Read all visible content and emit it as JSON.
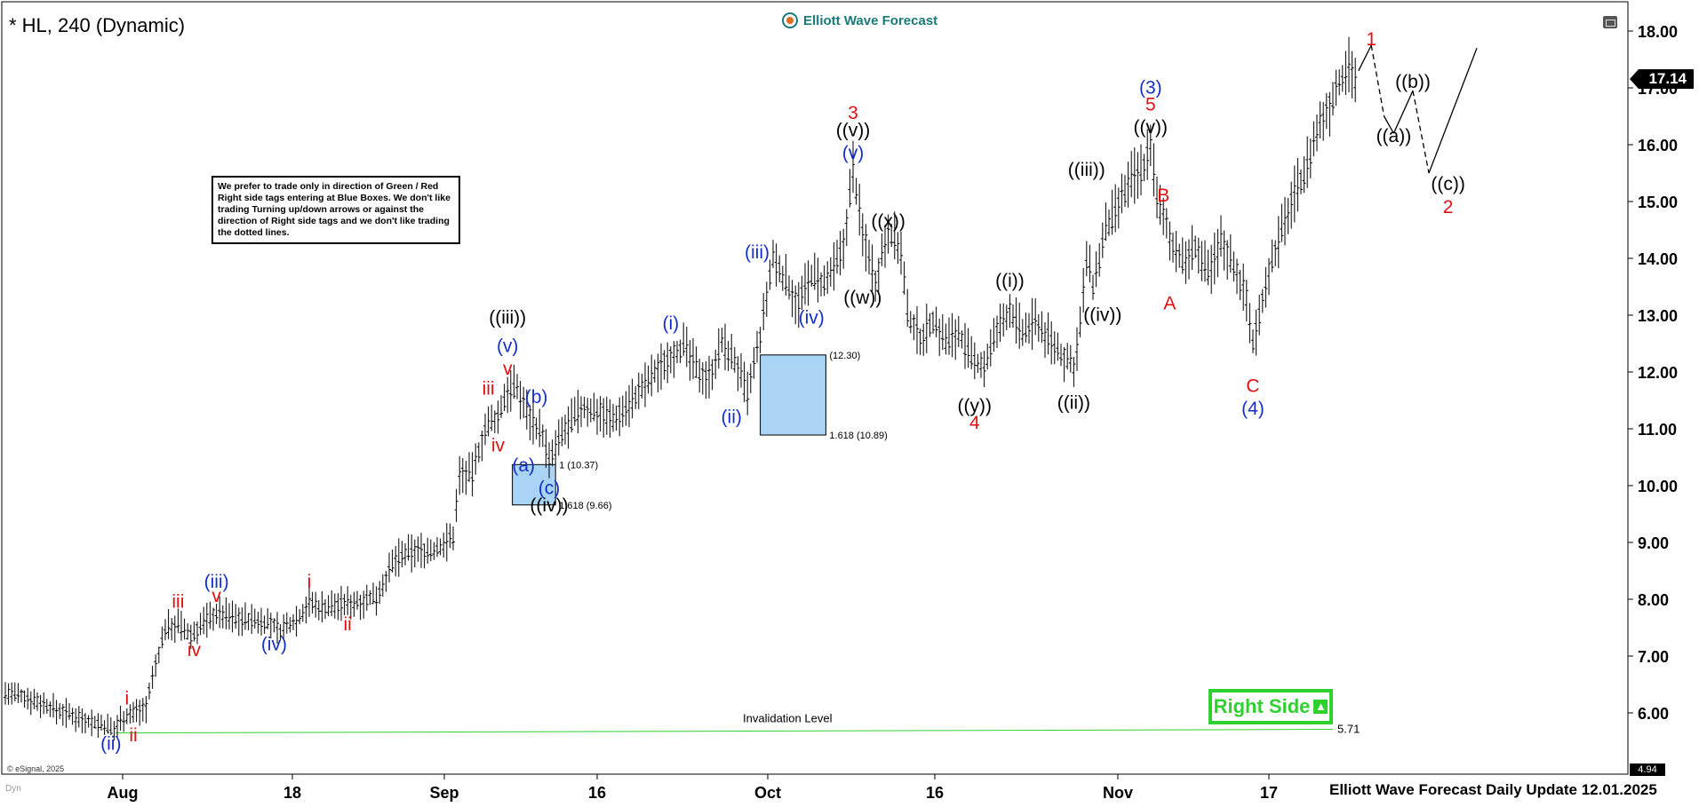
{
  "header": {
    "symbol_title": "* HL, 240 (Dynamic)",
    "brand": "Elliott Wave Forecast"
  },
  "notice": "We prefer to trade only in direction of Green / Red Right side tags entering at Blue Boxes. We don't like trading Turning up/down arrows or against the direction of Right side tags and we don't like trading the dotted lines.",
  "right_side_label": "Right Side",
  "footer": "Elliott Wave Forecast Daily Update 12.01.2025",
  "copyright": "© eSignal, 2025",
  "dyn_label": "Dyn",
  "last_price": "17.14",
  "min_price_tag": "4.94",
  "colors": {
    "red": "#e01010",
    "blue": "#1530c8",
    "black": "#000000",
    "green": "#2fd12f",
    "box": "#a9d4f5"
  },
  "chart_data": {
    "type": "ohlc",
    "title": "* HL, 240 (Dynamic)",
    "ylim": [
      5,
      18
    ],
    "y_ticks": [
      "18.00",
      "17.00",
      "16.00",
      "15.00",
      "14.00",
      "13.00",
      "12.00",
      "11.00",
      "10.00",
      "9.00",
      "8.00",
      "7.00",
      "6.00"
    ],
    "x_ticks": [
      "Aug",
      "18",
      "Sep",
      "16",
      "Oct",
      "16",
      "Nov",
      "17"
    ],
    "price_path": [
      [
        0,
        6.35
      ],
      [
        8,
        6.25
      ],
      [
        16,
        6.05
      ],
      [
        24,
        5.9
      ],
      [
        32,
        5.75
      ],
      [
        34,
        5.68
      ],
      [
        36,
        5.9
      ],
      [
        40,
        6.0
      ],
      [
        44,
        6.1
      ],
      [
        46,
        6.6
      ],
      [
        50,
        7.5
      ],
      [
        54,
        7.55
      ],
      [
        58,
        7.35
      ],
      [
        62,
        7.6
      ],
      [
        66,
        7.75
      ],
      [
        74,
        7.65
      ],
      [
        82,
        7.6
      ],
      [
        86,
        7.45
      ],
      [
        92,
        7.7
      ],
      [
        95,
        7.95
      ],
      [
        98,
        7.85
      ],
      [
        104,
        7.9
      ],
      [
        110,
        7.95
      ],
      [
        116,
        8.05
      ],
      [
        122,
        8.7
      ],
      [
        128,
        8.85
      ],
      [
        134,
        8.85
      ],
      [
        140,
        9.1
      ],
      [
        142,
        10.2
      ],
      [
        146,
        10.2
      ],
      [
        150,
        11.0
      ],
      [
        154,
        11.2
      ],
      [
        157,
        11.7
      ],
      [
        160,
        11.7
      ],
      [
        164,
        11.2
      ],
      [
        168,
        10.9
      ],
      [
        170,
        10.4
      ],
      [
        174,
        10.9
      ],
      [
        180,
        11.35
      ],
      [
        186,
        11.3
      ],
      [
        190,
        11.15
      ],
      [
        196,
        11.5
      ],
      [
        202,
        11.9
      ],
      [
        208,
        12.3
      ],
      [
        212,
        12.45
      ],
      [
        216,
        12.05
      ],
      [
        220,
        11.9
      ],
      [
        224,
        12.5
      ],
      [
        228,
        12.2
      ],
      [
        232,
        11.6
      ],
      [
        236,
        12.6
      ],
      [
        240,
        14.0
      ],
      [
        244,
        13.6
      ],
      [
        248,
        13.2
      ],
      [
        252,
        13.7
      ],
      [
        256,
        13.5
      ],
      [
        260,
        13.9
      ],
      [
        262,
        14.2
      ],
      [
        265,
        15.6
      ],
      [
        268,
        14.4
      ],
      [
        270,
        14.1
      ],
      [
        272,
        13.6
      ],
      [
        276,
        14.55
      ],
      [
        280,
        14.1
      ],
      [
        282,
        13.0
      ],
      [
        286,
        12.6
      ],
      [
        290,
        12.9
      ],
      [
        294,
        12.55
      ],
      [
        298,
        12.7
      ],
      [
        302,
        12.2
      ],
      [
        306,
        12.1
      ],
      [
        310,
        12.7
      ],
      [
        314,
        13.1
      ],
      [
        318,
        12.65
      ],
      [
        322,
        12.9
      ],
      [
        326,
        12.6
      ],
      [
        330,
        12.3
      ],
      [
        334,
        12.1
      ],
      [
        336,
        12.8
      ],
      [
        338,
        14.0
      ],
      [
        340,
        13.5
      ],
      [
        344,
        14.5
      ],
      [
        348,
        14.9
      ],
      [
        352,
        15.4
      ],
      [
        356,
        15.6
      ],
      [
        358,
        16.1
      ],
      [
        360,
        15.0
      ],
      [
        364,
        14.4
      ],
      [
        368,
        13.9
      ],
      [
        372,
        14.2
      ],
      [
        376,
        13.7
      ],
      [
        380,
        14.3
      ],
      [
        384,
        13.9
      ],
      [
        388,
        13.3
      ],
      [
        390,
        12.5
      ],
      [
        392,
        13.0
      ],
      [
        394,
        13.6
      ],
      [
        398,
        14.3
      ],
      [
        402,
        15.0
      ],
      [
        406,
        15.5
      ],
      [
        410,
        16.2
      ],
      [
        414,
        16.7
      ],
      [
        418,
        17.2
      ],
      [
        420,
        17.5
      ],
      [
        422,
        17.15
      ]
    ],
    "green_box_1": {
      "top": 10.37,
      "bottom": 9.66,
      "labels": [
        "1 (10.37)",
        "1.618 (9.66)"
      ]
    },
    "blue_box_2": {
      "top": 12.3,
      "bottom": 10.89,
      "labels": [
        "(12.30)",
        "1.618 (10.89)"
      ]
    },
    "invalidation_level": {
      "label": "Invalidation Level",
      "value": "5.71"
    },
    "wave_labels": [
      {
        "text": "(ii)",
        "color": "blue",
        "price": 5.35,
        "x": 33
      },
      {
        "text": "i",
        "color": "red",
        "price": 6.15,
        "x": 38
      },
      {
        "text": "ii",
        "color": "red",
        "price": 5.5,
        "x": 40
      },
      {
        "text": "iii",
        "color": "red",
        "price": 7.85,
        "x": 54
      },
      {
        "text": "iv",
        "color": "red",
        "price": 7.0,
        "x": 59
      },
      {
        "text": "v",
        "color": "red",
        "price": 7.95,
        "x": 66
      },
      {
        "text": "(iii)",
        "color": "blue",
        "price": 8.2,
        "x": 66
      },
      {
        "text": "(iv)",
        "color": "blue",
        "price": 7.1,
        "x": 84
      },
      {
        "text": "i",
        "color": "red",
        "price": 8.2,
        "x": 95
      },
      {
        "text": "ii",
        "color": "red",
        "price": 7.45,
        "x": 107
      },
      {
        "text": "iii",
        "color": "red",
        "price": 11.6,
        "x": 151
      },
      {
        "text": "iv",
        "color": "red",
        "price": 10.6,
        "x": 154
      },
      {
        "text": "v",
        "color": "red",
        "price": 11.95,
        "x": 157
      },
      {
        "text": "(v)",
        "color": "blue",
        "price": 12.35,
        "x": 157
      },
      {
        "text": "((iii))",
        "color": "black",
        "price": 12.85,
        "x": 157
      },
      {
        "text": "(b)",
        "color": "blue",
        "price": 11.45,
        "x": 166
      },
      {
        "text": "(a)",
        "color": "blue",
        "price": 10.25,
        "x": 162
      },
      {
        "text": "(c)",
        "color": "blue",
        "price": 9.85,
        "x": 170
      },
      {
        "text": "((iv))",
        "color": "black",
        "price": 9.55,
        "x": 170
      },
      {
        "text": "(i)",
        "color": "blue",
        "price": 12.75,
        "x": 208
      },
      {
        "text": "(ii)",
        "color": "blue",
        "price": 11.1,
        "x": 227
      },
      {
        "text": "(iii)",
        "color": "blue",
        "price": 14.0,
        "x": 235
      },
      {
        "text": "(iv)",
        "color": "blue",
        "price": 12.85,
        "x": 252
      },
      {
        "text": "3",
        "color": "red",
        "price": 16.45,
        "x": 265
      },
      {
        "text": "((v))",
        "color": "black",
        "price": 16.15,
        "x": 265
      },
      {
        "text": "(v)",
        "color": "blue",
        "price": 15.75,
        "x": 265
      },
      {
        "text": "((x))",
        "color": "black",
        "price": 14.55,
        "x": 276
      },
      {
        "text": "((w))",
        "color": "black",
        "price": 13.2,
        "x": 268
      },
      {
        "text": "((i))",
        "color": "black",
        "price": 13.5,
        "x": 314
      },
      {
        "text": "((y))",
        "color": "black",
        "price": 11.3,
        "x": 303
      },
      {
        "text": "4",
        "color": "red",
        "price": 11.0,
        "x": 303
      },
      {
        "text": "((iii))",
        "color": "black",
        "price": 15.45,
        "x": 338
      },
      {
        "text": "((iv))",
        "color": "black",
        "price": 12.9,
        "x": 343
      },
      {
        "text": "((ii))",
        "color": "black",
        "price": 11.35,
        "x": 334
      },
      {
        "text": "(3)",
        "color": "blue",
        "price": 16.9,
        "x": 358
      },
      {
        "text": "5",
        "color": "red",
        "price": 16.6,
        "x": 358
      },
      {
        "text": "((v))",
        "color": "black",
        "price": 16.2,
        "x": 358
      },
      {
        "text": "B",
        "color": "red",
        "price": 15.0,
        "x": 362
      },
      {
        "text": "A",
        "color": "red",
        "price": 13.1,
        "x": 364
      },
      {
        "text": "C",
        "color": "red",
        "price": 11.65,
        "x": 390
      },
      {
        "text": "(4)",
        "color": "blue",
        "price": 11.25,
        "x": 390
      },
      {
        "text": "1",
        "color": "red",
        "price": 17.75,
        "x": 427
      },
      {
        "text": "((a))",
        "color": "black",
        "price": 16.05,
        "x": 434
      },
      {
        "text": "((b))",
        "color": "black",
        "price": 17.0,
        "x": 440
      },
      {
        "text": "((c))",
        "color": "black",
        "price": 15.2,
        "x": 451
      },
      {
        "text": "2",
        "color": "red",
        "price": 14.8,
        "x": 451
      }
    ],
    "projection": [
      [
        423,
        17.3
      ],
      [
        427,
        17.75
      ],
      [
        431,
        16.5
      ],
      [
        434,
        16.2
      ],
      [
        440,
        16.95
      ],
      [
        445,
        15.5
      ],
      [
        460,
        17.7
      ]
    ]
  }
}
